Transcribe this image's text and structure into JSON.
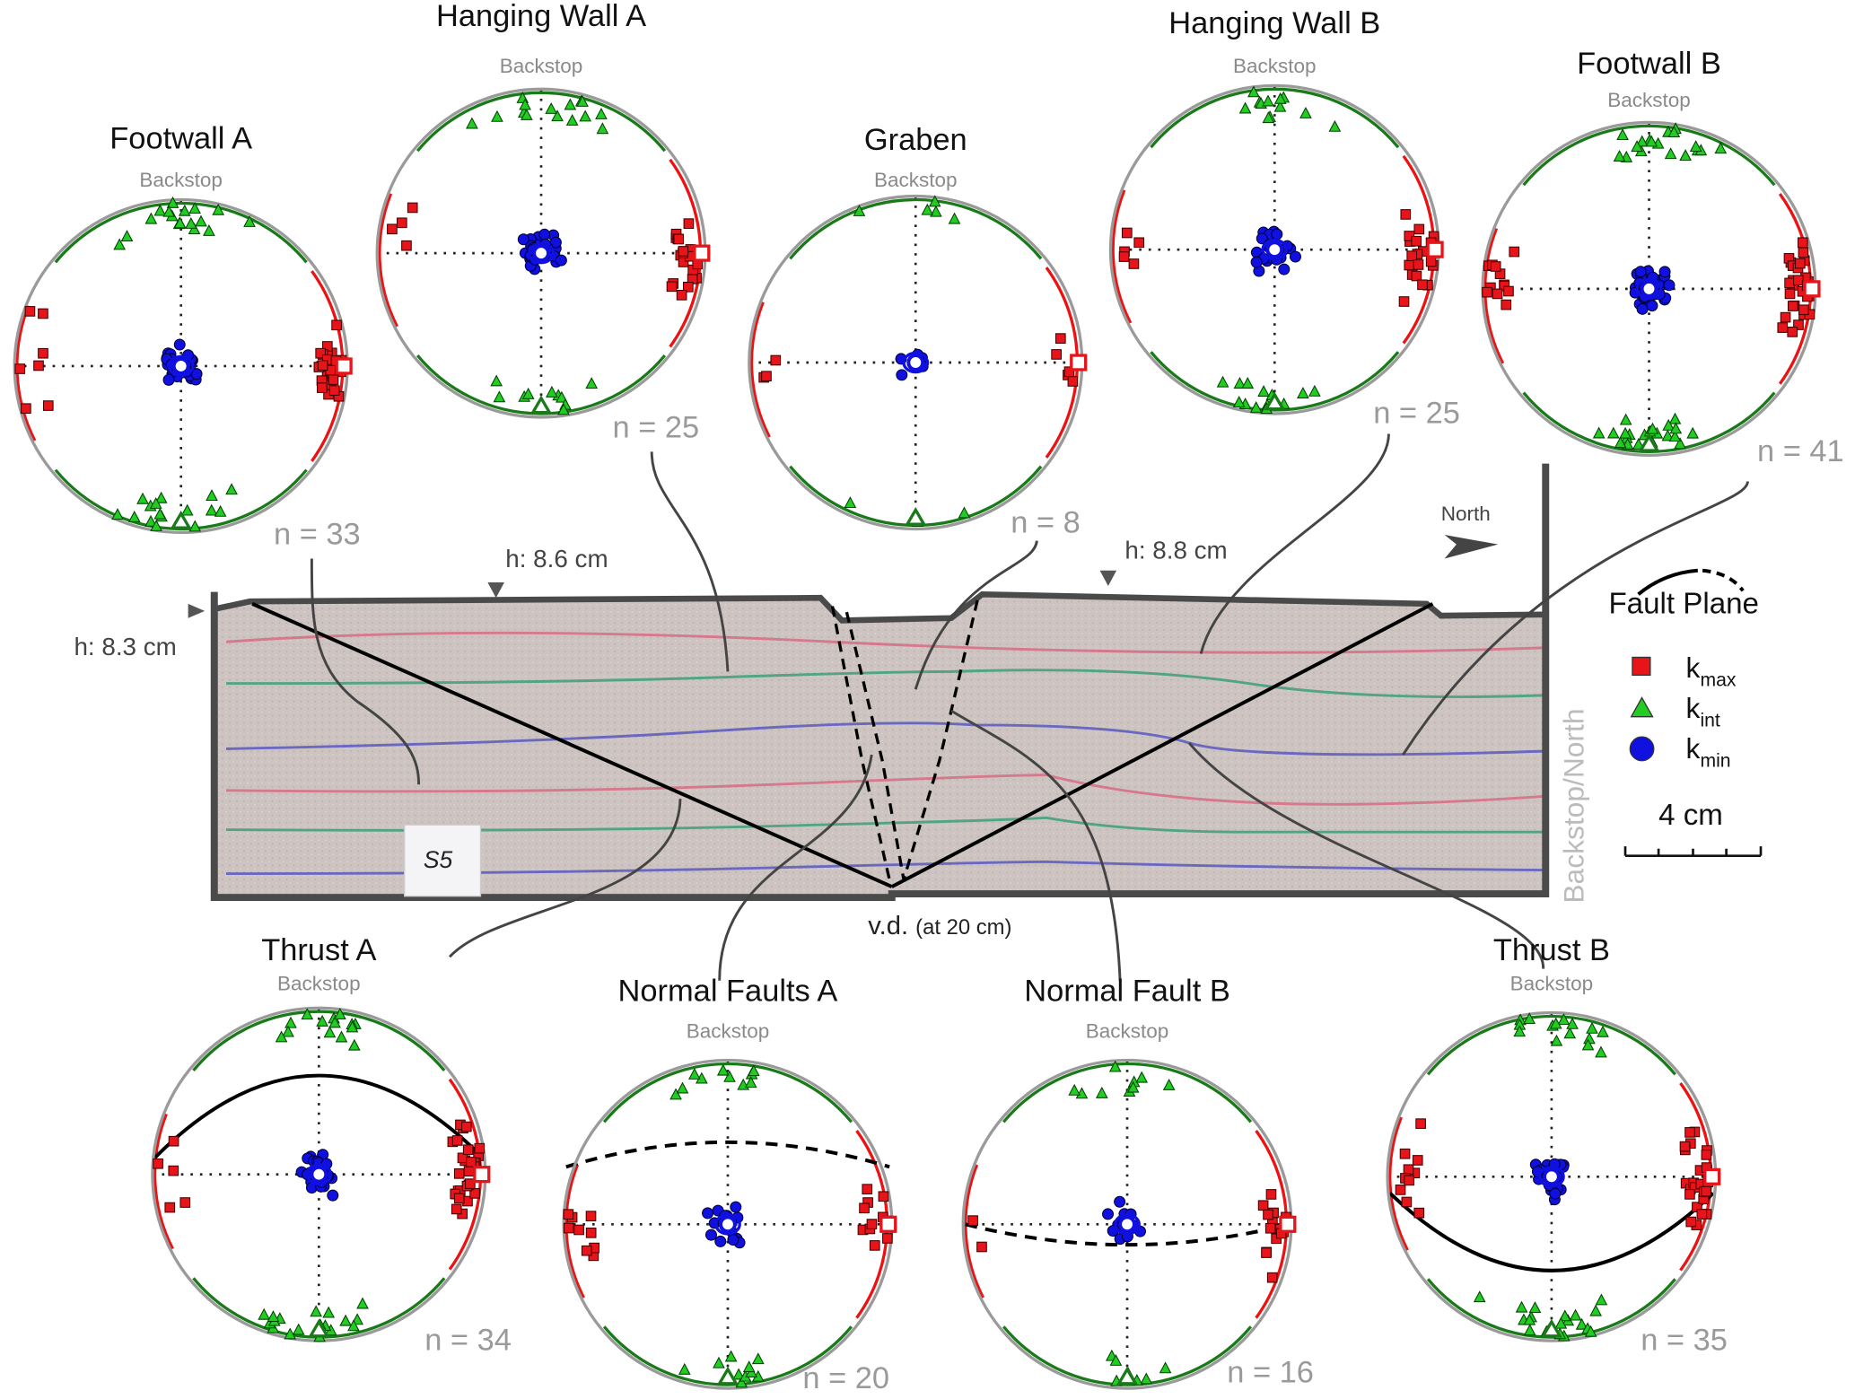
{
  "nets": [
    {
      "id": "footwall-a",
      "title": "Footwall A",
      "backstop": "Backstop",
      "n_label": "n = 33",
      "kmax_side": "east",
      "fault_plane": "none"
    },
    {
      "id": "hanging-wall-a",
      "title": "Hanging Wall A",
      "backstop": "Backstop",
      "n_label": "n = 25",
      "kmax_side": "east",
      "fault_plane": "none"
    },
    {
      "id": "graben",
      "title": "Graben",
      "backstop": "Backstop",
      "n_label": "n = 8",
      "kmax_side": "east",
      "fault_plane": "none"
    },
    {
      "id": "hanging-wall-b",
      "title": "Hanging Wall B",
      "backstop": "Backstop",
      "n_label": "n = 25",
      "kmax_side": "east",
      "fault_plane": "none"
    },
    {
      "id": "footwall-b",
      "title": "Footwall B",
      "backstop": "Backstop",
      "n_label": "n = 41",
      "kmax_side": "east",
      "fault_plane": "none"
    },
    {
      "id": "thrust-a",
      "title": "Thrust A",
      "backstop": "Backstop",
      "n_label": "n = 34",
      "kmax_side": "east",
      "fault_plane": "solid-north"
    },
    {
      "id": "normal-faults-a",
      "title": "Normal Faults A",
      "backstop": "Backstop",
      "n_label": "n = 20",
      "kmax_side": "east",
      "fault_plane": "dashed-north"
    },
    {
      "id": "normal-fault-b",
      "title": "Normal Fault B",
      "backstop": "Backstop",
      "n_label": "n = 16",
      "kmax_side": "east",
      "fault_plane": "dashed-south"
    },
    {
      "id": "thrust-b",
      "title": "Thrust B",
      "backstop": "Backstop",
      "n_label": "n = 35",
      "kmax_side": "east",
      "fault_plane": "solid-south"
    }
  ],
  "section": {
    "h_left": "h: 8.3 cm",
    "h_mid_left": "h: 8.6 cm",
    "h_mid_right": "h: 8.8 cm",
    "vd_main": "v.d.",
    "vd_note": "(at 20 cm)",
    "north": "North",
    "backstop_north": "Backstop/North",
    "card_label": "S5"
  },
  "legend": {
    "fault_plane": "Fault Plane",
    "kmax": {
      "k": "k",
      "sub": "max",
      "color": "#e8141a"
    },
    "kint": {
      "k": "k",
      "sub": "int",
      "color": "#22cc22"
    },
    "kmin": {
      "k": "k",
      "sub": "min",
      "color": "#1010e0"
    },
    "scale": "4 cm"
  },
  "colors": {
    "kmax": "#e8141a",
    "kint": "#22cc22",
    "kmin": "#1010e0",
    "kint_conf": "#1a7a1a",
    "kmax_conf": "#ee1111",
    "net": "#9a9a9a",
    "section_frame": "#4a4a4a",
    "sand": "#cfc6c2"
  }
}
